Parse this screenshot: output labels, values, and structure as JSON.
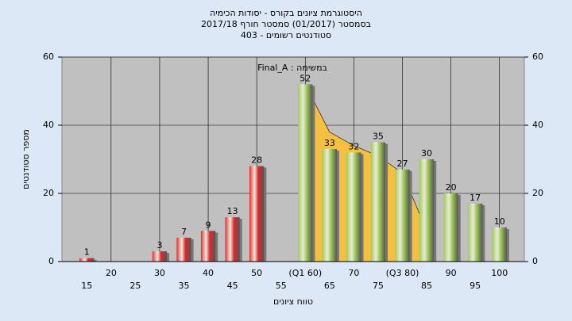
{
  "chart_data": {
    "type": "bar",
    "title": "היסטוגרמת ציונים בקורס - יסודות הכימיה",
    "subtitle": "בסמסטר  (01/2017)  סמסטר חורף 2017/18",
    "subtitle2": "סטודנטים רשומים - 403",
    "annotation": "Final_A : במשימה",
    "y_label": "מספר סטודנטים",
    "x_label": "טווח ציונים",
    "categories": [
      "15",
      "20",
      "25",
      "30",
      "35",
      "40",
      "45",
      "50",
      "55",
      "(Q1 60)",
      "65",
      "70",
      "75",
      "(Q3 80)",
      "85",
      "90",
      "95",
      "100"
    ],
    "values": [
      1,
      0,
      0,
      3,
      7,
      9,
      13,
      28,
      0,
      52,
      33,
      32,
      35,
      27,
      30,
      20,
      17,
      10
    ],
    "colors": [
      "#e02828",
      "#e02828",
      "#e02828",
      "#e02828",
      "#e02828",
      "#e02828",
      "#e02828",
      "#e02828",
      "#e02828",
      "#9cc850",
      "#9cc850",
      "#9cc850",
      "#9cc850",
      "#9cc850",
      "#9cc850",
      "#9cc850",
      "#9cc850",
      "#9cc850"
    ],
    "curve": {
      "color": "#f5c040",
      "values": [
        null,
        null,
        null,
        null,
        null,
        null,
        null,
        null,
        null,
        52,
        38,
        34,
        31,
        26,
        9,
        null,
        null,
        null
      ]
    },
    "ylim": [
      0,
      60
    ],
    "yticks": [
      0,
      20,
      40,
      60
    ],
    "y2lim": [
      0,
      60
    ],
    "y2ticks": [
      0,
      20,
      40,
      60
    ],
    "grid": true
  }
}
